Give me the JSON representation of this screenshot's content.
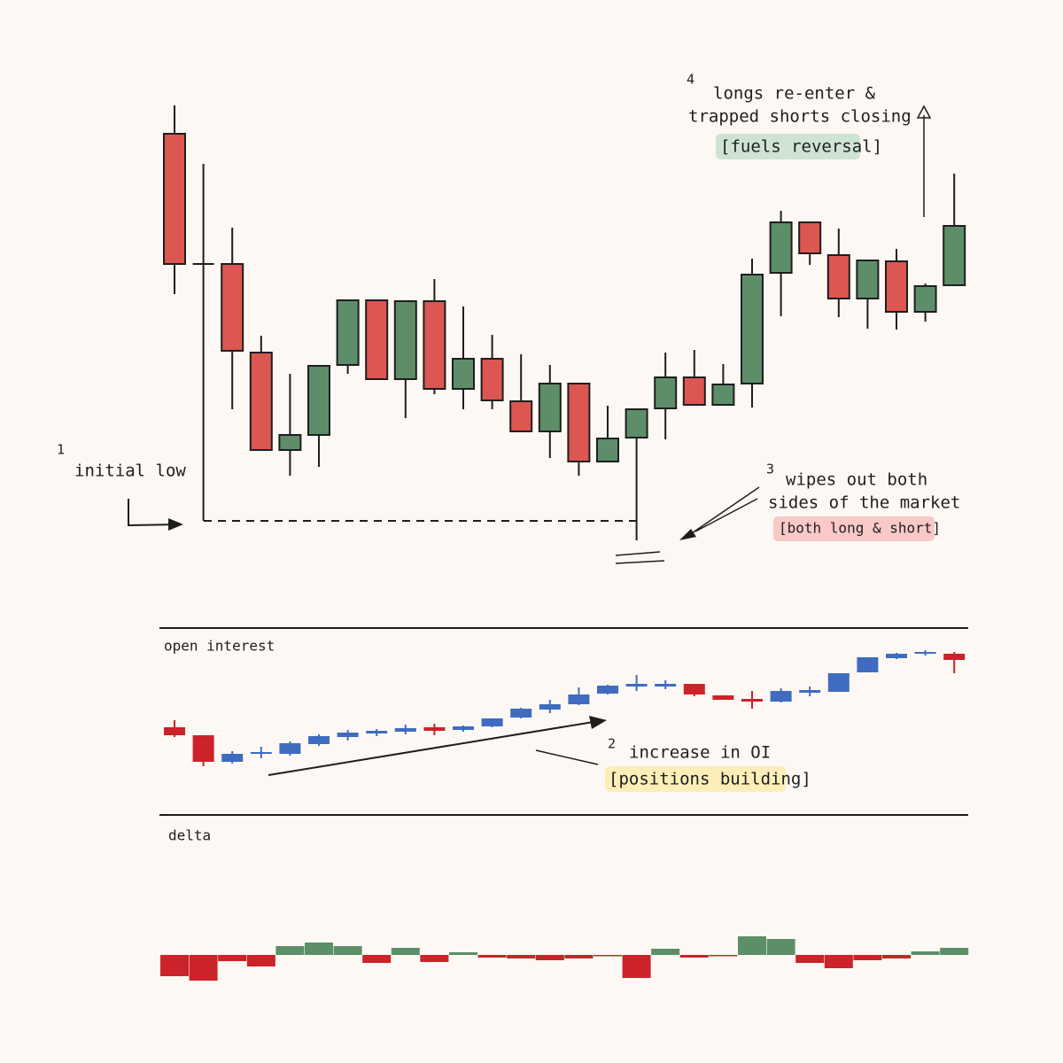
{
  "annotations": [
    {
      "number": "1",
      "lines": [
        "initial low"
      ]
    },
    {
      "number": "2",
      "lines": [
        "increase in OI"
      ],
      "tag": "[positions building]"
    },
    {
      "number": "3",
      "lines": [
        "wipes out both",
        "sides of the market"
      ],
      "tag": "[both long & short]"
    },
    {
      "number": "4",
      "lines": [
        "longs re-enter &",
        "trapped shorts closing"
      ],
      "tag": "[fuels reversal]"
    }
  ],
  "panels": {
    "open_interest": "open interest",
    "delta": "delta"
  }
}
